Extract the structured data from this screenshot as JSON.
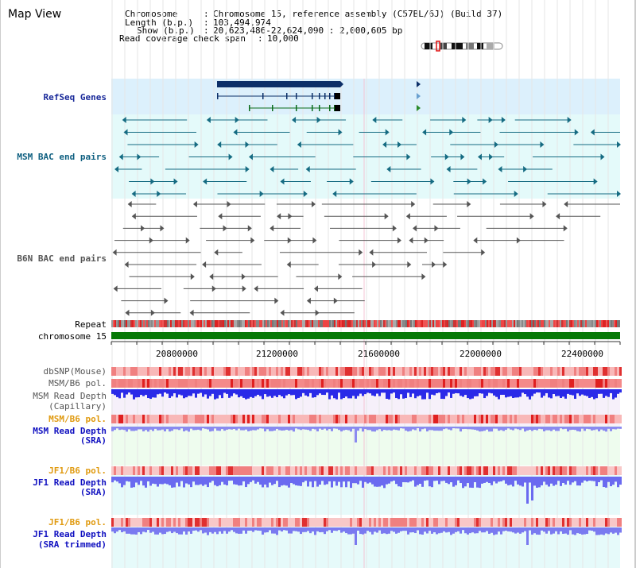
{
  "title": "Map View",
  "header": {
    "chromosome_key": "Chromosome",
    "chromosome_val": "Chromosome 15, reference assembly (C57BL/6J) (Build 37)",
    "length_key": "Length (b.p.)",
    "length_val": "103,494,974",
    "show_key": "Show (b.p.)",
    "show_val": "20,623,486-22,624,090 : 2,000,605 bp",
    "coverage_key": "Read coverage check span",
    "coverage_val": "10,000"
  },
  "tracks": {
    "refseq": "RefSeq Genes",
    "msm_bac": "MSM BAC end pairs",
    "b6n_bac": "B6N BAC end pairs",
    "repeat": "Repeat",
    "chromosome": "chromosome 15",
    "dbsnp": "dbSNP(Mouse)",
    "msm_b6_pol1": "MSM/B6 pol.",
    "msm_read_depth_cap_1": "MSM Read Depth",
    "msm_read_depth_cap_2": "(Capillary)",
    "msm_b6_pol2": "MSM/B6 pol.",
    "msm_read_depth_sra_1": "MSM Read Depth",
    "msm_read_depth_sra_2": "(SRA)",
    "jf1_b6_pol1": "JF1/B6 pol.",
    "jf1_read_depth_sra_1": "JF1 Read Depth",
    "jf1_read_depth_sra_2": "(SRA)",
    "jf1_b6_pol2": "JF1/B6 pol.",
    "jf1_read_depth_trim_1": "JF1 Read Depth",
    "jf1_read_depth_trim_2": "(SRA trimmed)"
  },
  "axis": {
    "ticks": [
      "20800000",
      "21200000",
      "21600000",
      "22000000",
      "22400000"
    ]
  },
  "colors": {
    "refseq_bg": "#dcf0fc",
    "bac_bg": "#e4fafa",
    "depth_bg": "#f4f0fa",
    "sra_bg": "#eefcee",
    "jf1_bg": "#e6fafa",
    "chrom_bar": "#067906",
    "depth_blue": "#2a2ae8",
    "sra_blue": "#6a6af0",
    "marker_red": "#e01010"
  }
}
